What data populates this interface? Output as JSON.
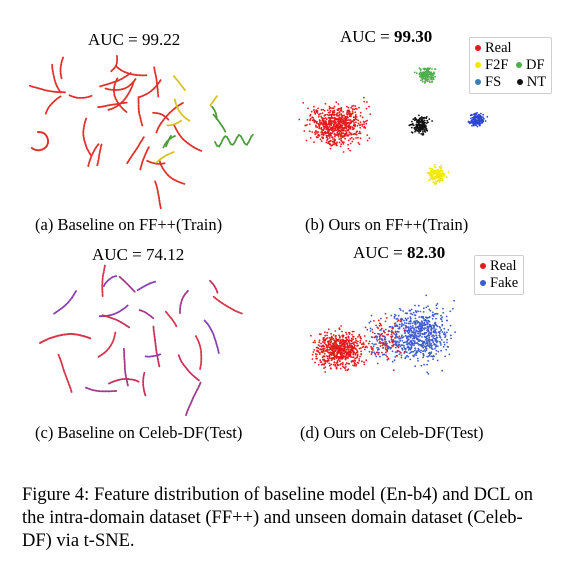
{
  "panels": {
    "a": {
      "auc_label": "AUC = ",
      "auc_value": "99.22",
      "caption": "(a) Baseline on FF++(Train)"
    },
    "b": {
      "auc_label": "AUC = ",
      "auc_value": "99.30",
      "caption": "(b) Ours on FF++(Train)",
      "legend": [
        {
          "label": "Real",
          "color": "#e41a1c"
        },
        {
          "label": "F2F",
          "color": "#f2e800"
        },
        {
          "label": "DF",
          "color": "#4daf4a"
        },
        {
          "label": "FS",
          "color": "#377eb8"
        },
        {
          "label": "NT",
          "color": "#111111"
        }
      ]
    },
    "c": {
      "auc_label": "AUC = ",
      "auc_value": "74.12",
      "caption": "(c) Baseline on Celeb-DF(Test)"
    },
    "d": {
      "auc_label": "AUC = ",
      "auc_value": "82.30",
      "caption": "(d) Ours on Celeb-DF(Test)",
      "legend": [
        {
          "label": "Real",
          "color": "#e41a1c"
        },
        {
          "label": "Fake",
          "color": "#3d5ccc"
        }
      ]
    }
  },
  "figure_caption": "Figure 4: Feature distribution of baseline model (En-b4) and DCL on the intra-domain dataset (FF++) and unseen domain dataset (Celeb-DF) via t-SNE."
}
